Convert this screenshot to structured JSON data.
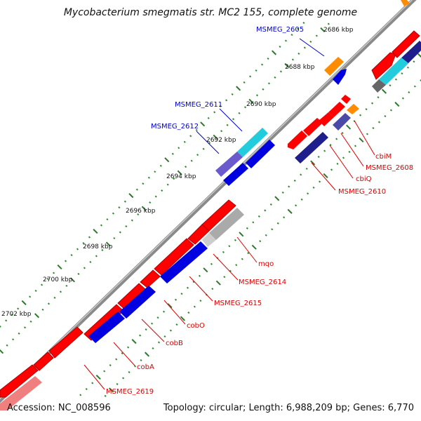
{
  "title": "Mycobacterium smegmatis str. MC2 155, complete genome",
  "footer": {
    "accession": "Accession: NC_008596",
    "summary": "Topology: circular; Length: 6,988,209 bp; Genes: 6,770"
  },
  "colors": {
    "backbone": "#8a8a8a",
    "tick_major": "#2a7a2a",
    "tick_minor": "#2e8b2e",
    "gene_red": "#ff0000",
    "gene_blue": "#0000e0",
    "gene_navy": "#1e1e8c",
    "gene_slate": "#4a4aa8",
    "gene_cyan": "#22ccdd",
    "gene_orange": "#ff8c00",
    "gene_grey": "#aaaaaa",
    "gene_pink": "#f08080",
    "label_red": "#dd0000",
    "label_blue": "#0000cc"
  },
  "kbp_labels": [
    "2686 kbp",
    "2688 kbp",
    "2690 kbp",
    "2692 kbp",
    "2694 kbp",
    "2696 kbp",
    "2698 kbp",
    "2700 kbp",
    "2702 kbp"
  ],
  "gene_labels_blue": [
    "MSMEG_2605",
    "MSMEG_2611",
    "MSMEG_2612"
  ],
  "gene_labels_red": [
    "cbiM",
    "MSMEG_2608",
    "cbiQ",
    "MSMEG_2610",
    "mqo",
    "MSMEG_2614",
    "MSMEG_2615",
    "cobO",
    "cobB",
    "cobA",
    "MSMEG_2619"
  ]
}
